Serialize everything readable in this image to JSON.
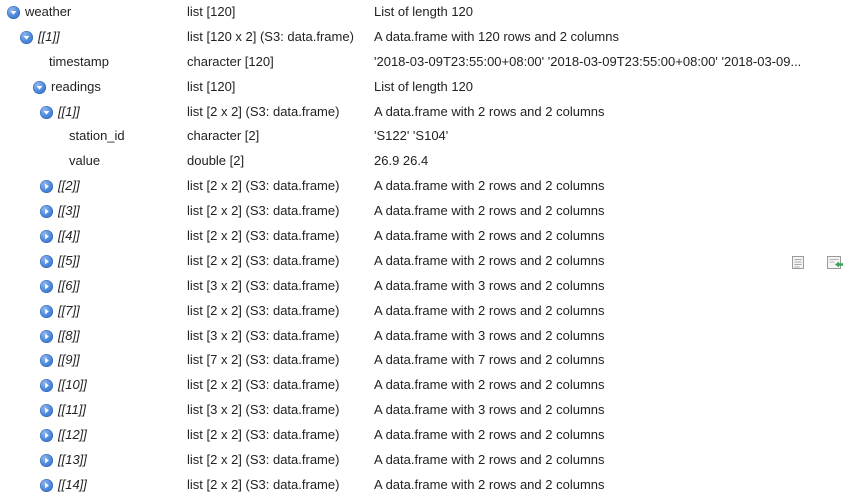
{
  "rows": [
    {
      "name": "weather",
      "italic": false,
      "depth": 0,
      "toggle": "expanded",
      "type": "list [120]",
      "value": "List of length 120"
    },
    {
      "name": "[[1]]",
      "italic": true,
      "depth": 1,
      "toggle": "expanded",
      "type": "list [120 x 2] (S3: data.frame)",
      "value": "A data.frame with 120 rows and 2 columns"
    },
    {
      "name": "timestamp",
      "italic": false,
      "depth": 2,
      "toggle": "none",
      "type": "character [120]",
      "value": "'2018-03-09T23:55:00+08:00' '2018-03-09T23:55:00+08:00' '2018-03-09..."
    },
    {
      "name": "readings",
      "italic": false,
      "depth": 2,
      "toggle": "expanded",
      "type": "list [120]",
      "value": "List of length 120"
    },
    {
      "name": "[[1]]",
      "italic": true,
      "depth": 3,
      "toggle": "expanded",
      "type": "list [2 x 2] (S3: data.frame)",
      "value": "A data.frame with 2 rows and 2 columns"
    },
    {
      "name": "station_id",
      "italic": false,
      "depth": 4,
      "toggle": "none",
      "type": "character [2]",
      "value": "'S122' 'S104'"
    },
    {
      "name": "value",
      "italic": false,
      "depth": 4,
      "toggle": "none",
      "type": "double [2]",
      "value": "26.9 26.4"
    },
    {
      "name": "[[2]]",
      "italic": true,
      "depth": 3,
      "toggle": "collapsed",
      "type": "list [2 x 2] (S3: data.frame)",
      "value": "A data.frame with 2 rows and 2 columns"
    },
    {
      "name": "[[3]]",
      "italic": true,
      "depth": 3,
      "toggle": "collapsed",
      "type": "list [2 x 2] (S3: data.frame)",
      "value": "A data.frame with 2 rows and 2 columns"
    },
    {
      "name": "[[4]]",
      "italic": true,
      "depth": 3,
      "toggle": "collapsed",
      "type": "list [2 x 2] (S3: data.frame)",
      "value": "A data.frame with 2 rows and 2 columns"
    },
    {
      "name": "[[5]]",
      "italic": true,
      "depth": 3,
      "toggle": "collapsed",
      "type": "list [2 x 2] (S3: data.frame)",
      "value": "A data.frame with 2 rows and 2 columns",
      "actions": [
        "view-icon",
        "copy-to-console-icon"
      ]
    },
    {
      "name": "[[6]]",
      "italic": true,
      "depth": 3,
      "toggle": "collapsed",
      "type": "list [3 x 2] (S3: data.frame)",
      "value": "A data.frame with 3 rows and 2 columns"
    },
    {
      "name": "[[7]]",
      "italic": true,
      "depth": 3,
      "toggle": "collapsed",
      "type": "list [2 x 2] (S3: data.frame)",
      "value": "A data.frame with 2 rows and 2 columns"
    },
    {
      "name": "[[8]]",
      "italic": true,
      "depth": 3,
      "toggle": "collapsed",
      "type": "list [3 x 2] (S3: data.frame)",
      "value": "A data.frame with 3 rows and 2 columns"
    },
    {
      "name": "[[9]]",
      "italic": true,
      "depth": 3,
      "toggle": "collapsed",
      "type": "list [7 x 2] (S3: data.frame)",
      "value": "A data.frame with 7 rows and 2 columns"
    },
    {
      "name": "[[10]]",
      "italic": true,
      "depth": 3,
      "toggle": "collapsed",
      "type": "list [2 x 2] (S3: data.frame)",
      "value": "A data.frame with 2 rows and 2 columns"
    },
    {
      "name": "[[11]]",
      "italic": true,
      "depth": 3,
      "toggle": "collapsed",
      "type": "list [3 x 2] (S3: data.frame)",
      "value": "A data.frame with 3 rows and 2 columns"
    },
    {
      "name": "[[12]]",
      "italic": true,
      "depth": 3,
      "toggle": "collapsed",
      "type": "list [2 x 2] (S3: data.frame)",
      "value": "A data.frame with 2 rows and 2 columns"
    },
    {
      "name": "[[13]]",
      "italic": true,
      "depth": 3,
      "toggle": "collapsed",
      "type": "list [2 x 2] (S3: data.frame)",
      "value": "A data.frame with 2 rows and 2 columns"
    },
    {
      "name": "[[14]]",
      "italic": true,
      "depth": 3,
      "toggle": "collapsed",
      "type": "list [2 x 2] (S3: data.frame)",
      "value": "A data.frame with 2 rows and 2 columns"
    }
  ],
  "colors": {
    "toggle": "#4a86da",
    "text": "#222222",
    "background": "#ffffff"
  }
}
